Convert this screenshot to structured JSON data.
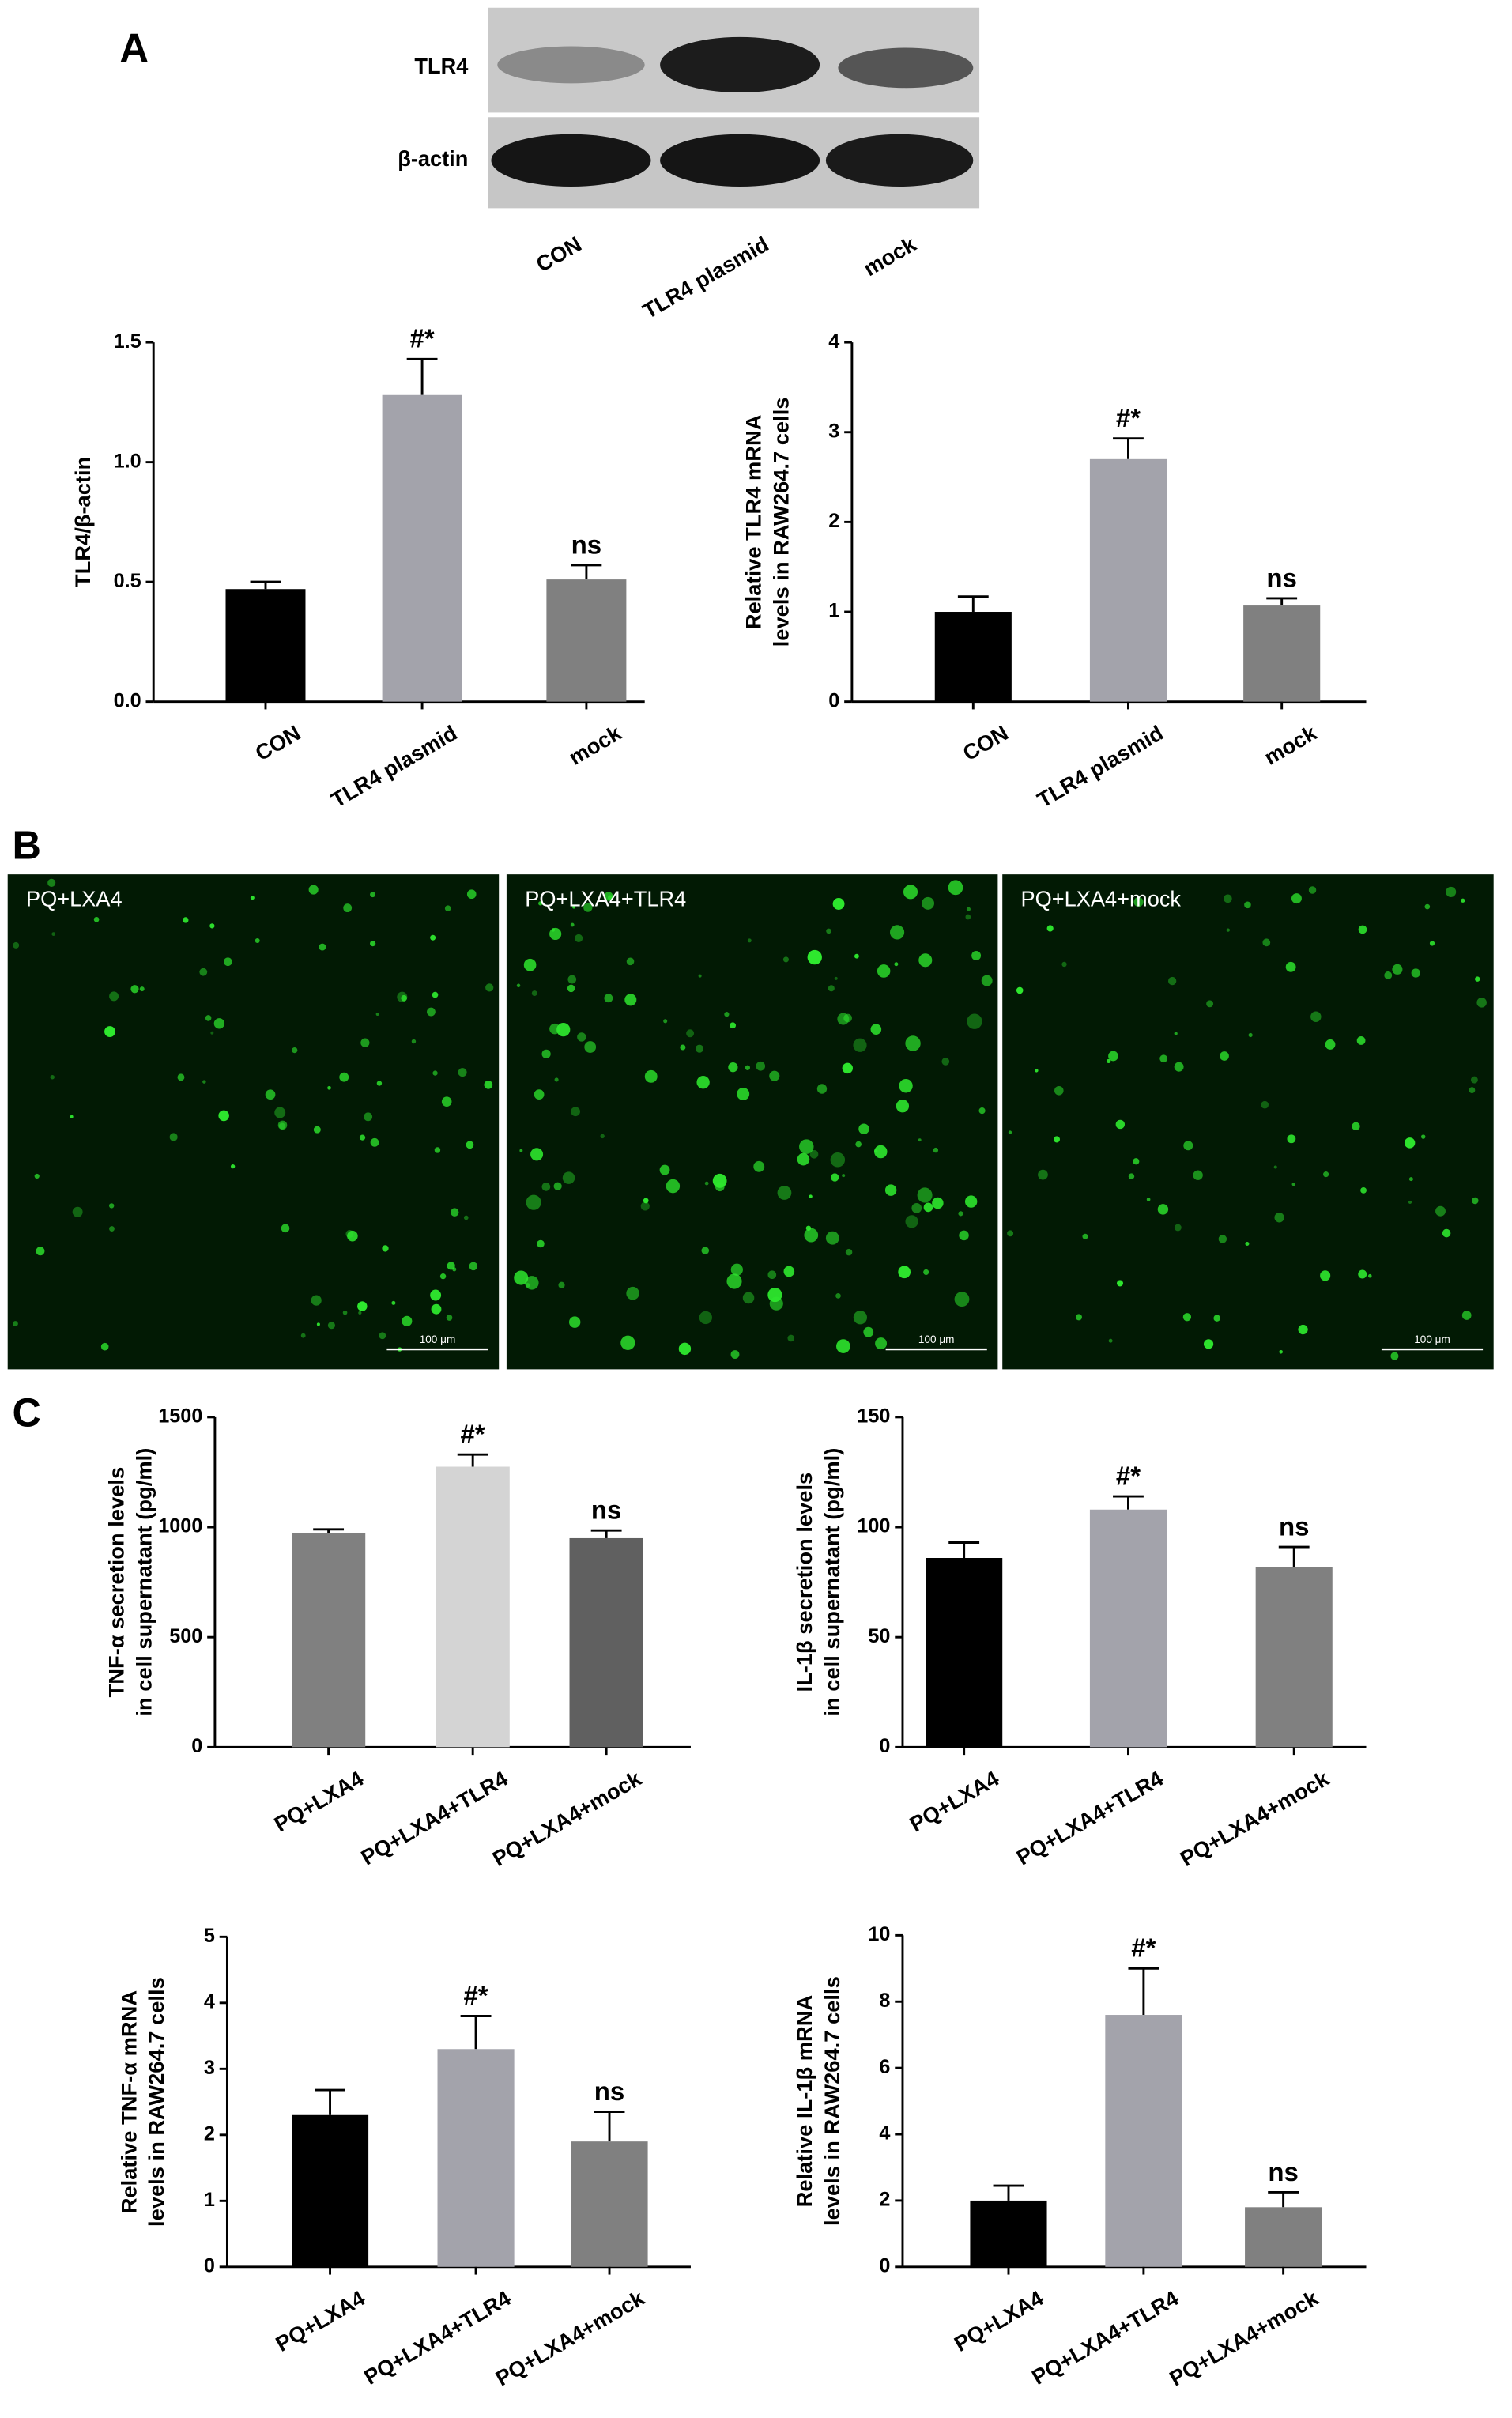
{
  "panel_labels": [
    "A",
    "B",
    "C"
  ],
  "blot": {
    "rows": [
      "TLR4",
      "β-actin"
    ],
    "lanes": [
      "CON",
      "TLR4 plasmid",
      "mock"
    ]
  },
  "micrographs": [
    {
      "label": "PQ+LXA4",
      "scale_bar": "100 μm"
    },
    {
      "label": "PQ+LXA4+TLR4",
      "scale_bar": "100 μm"
    },
    {
      "label": "PQ+LXA4+mock",
      "scale_bar": "100 μm"
    }
  ],
  "chart_data": [
    {
      "type": "bar",
      "ylabel": [
        "TLR4/β-actin"
      ],
      "categories": [
        "CON",
        "TLR4 plasmid",
        "mock"
      ],
      "values": [
        0.47,
        1.28,
        0.51
      ],
      "errors": [
        0.03,
        0.15,
        0.06
      ],
      "annotations": [
        null,
        "#*",
        "ns"
      ],
      "colors": [
        "#000000",
        "#a3a3ab",
        "#808080"
      ],
      "ylim": [
        0,
        1.5
      ],
      "yticks": [
        {
          "value": 0,
          "label": "0.0"
        },
        0.5,
        {
          "value": 1,
          "label": "1.0"
        },
        1.5
      ]
    },
    {
      "type": "bar",
      "ylabel": [
        "Relative TLR4 mRNA",
        "levels in RAW264.7 cells"
      ],
      "categories": [
        "CON",
        "TLR4 plasmid",
        "mock"
      ],
      "values": [
        1.0,
        2.7,
        1.07
      ],
      "errors": [
        0.17,
        0.23,
        0.08
      ],
      "annotations": [
        null,
        "#*",
        "ns"
      ],
      "colors": [
        "#000000",
        "#a3a3ab",
        "#808080"
      ],
      "ylim": [
        0,
        4
      ],
      "yticks": [
        0,
        1,
        2,
        3,
        4
      ]
    },
    {
      "type": "bar",
      "ylabel": [
        "TNF-α secretion levels",
        "in cell supernatant (pg/ml)"
      ],
      "categories": [
        "PQ+LXA4",
        "PQ+LXA4+TLR4",
        "PQ+LXA4+mock"
      ],
      "values": [
        975,
        1275,
        950
      ],
      "errors": [
        15,
        55,
        35
      ],
      "annotations": [
        null,
        "#*",
        "ns"
      ],
      "colors": [
        "#808080",
        "#d4d4d4",
        "#606060"
      ],
      "ylim": [
        0,
        1500
      ],
      "yticks": [
        0,
        500,
        1000,
        1500
      ]
    },
    {
      "type": "bar",
      "ylabel": [
        "IL-1β secretion levels",
        "in cell supernatant (pg/ml)"
      ],
      "categories": [
        "PQ+LXA4",
        "PQ+LXA4+TLR4",
        "PQ+LXA4+mock"
      ],
      "values": [
        86,
        108,
        82
      ],
      "errors": [
        7,
        6,
        9
      ],
      "annotations": [
        null,
        "#*",
        "ns"
      ],
      "colors": [
        "#000000",
        "#a3a3ab",
        "#808080"
      ],
      "ylim": [
        0,
        150
      ],
      "yticks": [
        0,
        50,
        100,
        150
      ]
    },
    {
      "type": "bar",
      "ylabel": [
        "Relative TNF-α mRNA",
        "levels in RAW264.7 cells"
      ],
      "categories": [
        "PQ+LXA4",
        "PQ+LXA4+TLR4",
        "PQ+LXA4+mock"
      ],
      "values": [
        2.3,
        3.3,
        1.9
      ],
      "errors": [
        0.38,
        0.5,
        0.45
      ],
      "annotations": [
        null,
        "#*",
        "ns"
      ],
      "colors": [
        "#000000",
        "#a3a3ab",
        "#808080"
      ],
      "ylim": [
        0,
        5
      ],
      "yticks": [
        0,
        1,
        2,
        3,
        4,
        5
      ]
    },
    {
      "type": "bar",
      "ylabel": [
        "Relative IL-1β mRNA",
        "levels in RAW264.7 cells"
      ],
      "categories": [
        "PQ+LXA4",
        "PQ+LXA4+TLR4",
        "PQ+LXA4+mock"
      ],
      "values": [
        2.0,
        7.6,
        1.8
      ],
      "errors": [
        0.45,
        1.4,
        0.45
      ],
      "annotations": [
        null,
        "#*",
        "ns"
      ],
      "colors": [
        "#000000",
        "#a3a3ab",
        "#808080"
      ],
      "ylim": [
        0,
        10
      ],
      "yticks": [
        0,
        2,
        4,
        6,
        8,
        10
      ]
    }
  ]
}
